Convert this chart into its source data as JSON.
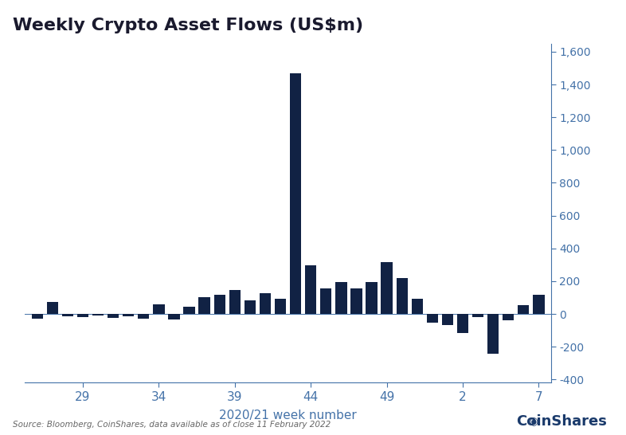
{
  "title": "Weekly Crypto Asset Flows (US$m)",
  "xlabel": "2020/21 week number",
  "bar_color": "#112244",
  "background_color": "#ffffff",
  "source_text": "Source: Bloomberg, CoinShares, data available as of close 11 February 2022",
  "yticks": [
    -400,
    -200,
    0,
    200,
    400,
    600,
    800,
    1000,
    1200,
    1400,
    1600
  ],
  "xtick_labels": [
    "29",
    "34",
    "39",
    "44",
    "49",
    "2",
    "7"
  ],
  "week_numbers": [
    26,
    27,
    28,
    29,
    30,
    31,
    32,
    33,
    34,
    35,
    36,
    37,
    38,
    39,
    40,
    41,
    42,
    43,
    44,
    45,
    46,
    47,
    48,
    49,
    50,
    51,
    52,
    53,
    54,
    55,
    56,
    57,
    58,
    59
  ],
  "values": [
    -30,
    75,
    -15,
    -20,
    -10,
    -25,
    -15,
    -30,
    60,
    -35,
    45,
    100,
    115,
    145,
    85,
    125,
    95,
    1470,
    295,
    155,
    195,
    155,
    195,
    315,
    220,
    95,
    -55,
    -70,
    -115,
    -20,
    -245,
    -40,
    55,
    115
  ],
  "title_color": "#1a1a2e",
  "axis_color": "#4472a8",
  "tick_color": "#4472a8",
  "source_color": "#666666",
  "coinshares_color": "#1a3a6b",
  "title_fontsize": 16,
  "xlabel_fontsize": 11,
  "ytick_fontsize": 10,
  "xtick_fontsize": 11
}
